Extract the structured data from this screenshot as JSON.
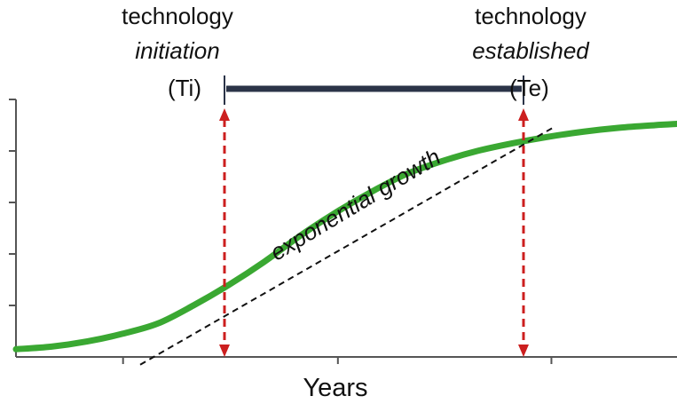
{
  "chart_data": {
    "type": "line",
    "title": "",
    "xlabel": "Years",
    "ylabel": "",
    "grid": false,
    "series": [
      {
        "values": [
          [
            0,
            0.03
          ],
          [
            40,
            0.04
          ],
          [
            80,
            0.06
          ],
          [
            120,
            0.09
          ],
          [
            160,
            0.13
          ],
          [
            200,
            0.2
          ],
          [
            240,
            0.28
          ],
          [
            280,
            0.37
          ],
          [
            320,
            0.47
          ],
          [
            360,
            0.56
          ],
          [
            400,
            0.64
          ],
          [
            440,
            0.71
          ],
          [
            480,
            0.76
          ],
          [
            520,
            0.8
          ],
          [
            560,
            0.83
          ],
          [
            600,
            0.855
          ],
          [
            640,
            0.875
          ],
          [
            680,
            0.89
          ],
          [
            720,
            0.9
          ],
          [
            745,
            0.905
          ]
        ],
        "color": "#3aa832"
      }
    ],
    "tangent": {
      "from": [
        140,
        -0.03
      ],
      "to": [
        605,
        0.89
      ],
      "color": "#111111"
    },
    "markers": [
      {
        "id": "ti",
        "x": 235,
        "top_label": "technology",
        "italic_label": "initiation",
        "side_label": "(Ti)"
      },
      {
        "id": "te",
        "x": 572,
        "top_label": "technology",
        "italic_label": "established",
        "side_label": "(Te)"
      }
    ],
    "marker_color": "#cc1f1f",
    "span_bar_color": "#2b3448",
    "annotation": {
      "text": "exponential growth",
      "color": "#2b3448"
    },
    "xlim": [
      0,
      745
    ],
    "ylim": [
      0,
      1
    ]
  }
}
